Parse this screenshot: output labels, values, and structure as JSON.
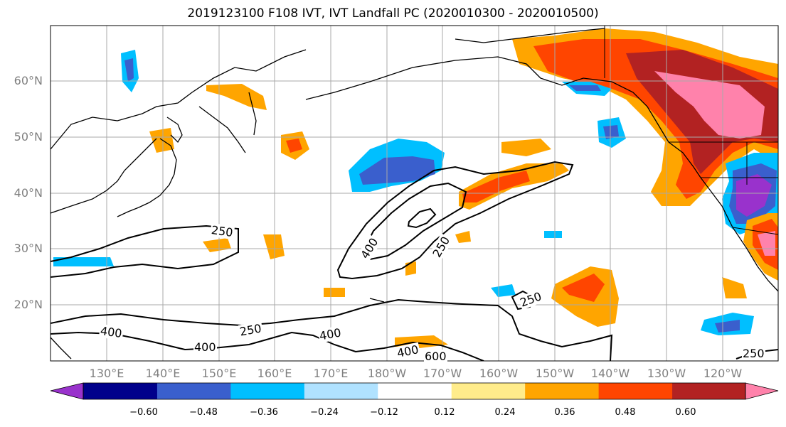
{
  "title": "2019123100 F108 IVT, IVT Landfall PC (2020010300 - 2020010500)",
  "lat_labels": [
    "60°N",
    "50°N",
    "40°N",
    "30°N",
    "20°N"
  ],
  "lon_labels": [
    "130°E",
    "140°E",
    "150°E",
    "160°E",
    "170°E",
    "180°W",
    "170°W",
    "160°W",
    "150°W",
    "140°W",
    "130°W",
    "120°W"
  ],
  "contour_labels": [
    "250",
    "250",
    "400",
    "250",
    "400",
    "400",
    "400",
    "600",
    "250",
    "250"
  ],
  "colorbar": {
    "ticks": [
      "−0.60",
      "−0.48",
      "−0.36",
      "−0.24",
      "−0.12",
      "0.12",
      "0.24",
      "0.36",
      "0.48",
      "0.60"
    ],
    "colors": [
      "#9932cc",
      "#00008b",
      "#3a5fcd",
      "#00bfff",
      "#b0e2ff",
      "#ffffff",
      "#ffec8b",
      "#ffa500",
      "#ff4500",
      "#b22222",
      "#ff82ab"
    ]
  }
}
